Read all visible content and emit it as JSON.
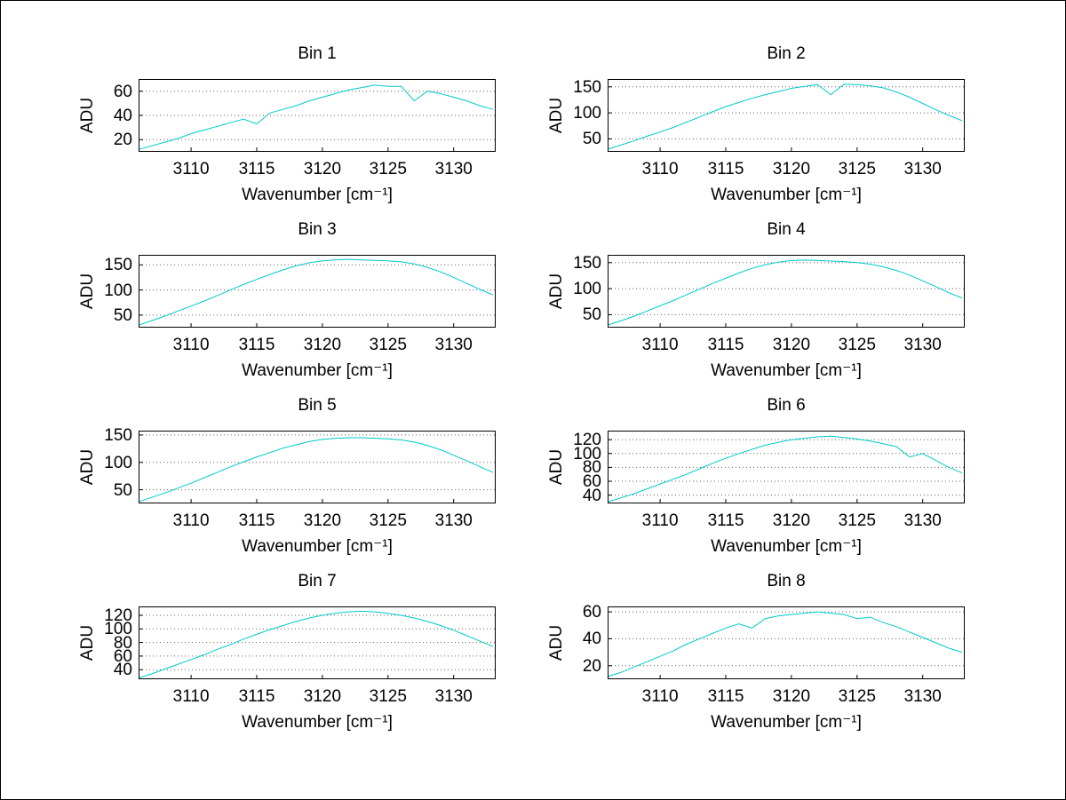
{
  "colors": {
    "line": "#00C9C9",
    "grid": "#606060",
    "axis": "#000000",
    "background": "#ffffff"
  },
  "chart_data": [
    {
      "type": "line",
      "title": "Bin 1",
      "ylabel": "ADU",
      "xlabel": "Wavenumber [cm⁻¹]",
      "xlim": [
        3106,
        3133.2
      ],
      "ylim": [
        10,
        70
      ],
      "xticks": [
        3110,
        3115,
        3120,
        3125,
        3130
      ],
      "yticks": [
        20,
        40,
        60
      ],
      "grid": "horizontal-dotted",
      "x": [
        3106,
        3107,
        3108,
        3109,
        3110,
        3111,
        3112,
        3113,
        3114,
        3115,
        3116,
        3117,
        3118,
        3119,
        3120,
        3121,
        3122,
        3123,
        3124,
        3125,
        3126,
        3127,
        3128,
        3129,
        3130,
        3131,
        3132,
        3133
      ],
      "y": [
        12,
        15,
        18,
        21,
        25,
        28,
        31,
        34,
        37,
        33,
        42,
        45,
        48,
        52,
        55,
        58,
        61,
        63,
        65,
        64,
        64,
        52,
        60,
        58,
        55,
        52,
        48,
        45
      ]
    },
    {
      "type": "line",
      "title": "Bin 2",
      "ylabel": "ADU",
      "xlabel": "Wavenumber [cm⁻¹]",
      "xlim": [
        3106,
        3133.2
      ],
      "ylim": [
        25,
        165
      ],
      "xticks": [
        3110,
        3115,
        3120,
        3125,
        3130
      ],
      "yticks": [
        50,
        100,
        150
      ],
      "grid": "horizontal-dotted",
      "x": [
        3106,
        3107,
        3108,
        3109,
        3110,
        3111,
        3112,
        3113,
        3114,
        3115,
        3116,
        3117,
        3118,
        3119,
        3120,
        3121,
        3122,
        3123,
        3124,
        3125,
        3126,
        3127,
        3128,
        3129,
        3130,
        3131,
        3132,
        3133
      ],
      "y": [
        30,
        38,
        46,
        55,
        63,
        72,
        82,
        92,
        102,
        112,
        120,
        128,
        135,
        141,
        147,
        151,
        154,
        135,
        155,
        154,
        152,
        148,
        140,
        130,
        118,
        106,
        95,
        85
      ]
    },
    {
      "type": "line",
      "title": "Bin 3",
      "ylabel": "ADU",
      "xlabel": "Wavenumber [cm⁻¹]",
      "xlim": [
        3106,
        3133.2
      ],
      "ylim": [
        25,
        170
      ],
      "xticks": [
        3110,
        3115,
        3120,
        3125,
        3130
      ],
      "yticks": [
        50,
        100,
        150
      ],
      "grid": "horizontal-dotted",
      "x": [
        3106,
        3107,
        3108,
        3109,
        3110,
        3111,
        3112,
        3113,
        3114,
        3115,
        3116,
        3117,
        3118,
        3119,
        3120,
        3121,
        3122,
        3123,
        3124,
        3125,
        3126,
        3127,
        3128,
        3129,
        3130,
        3131,
        3132,
        3133
      ],
      "y": [
        30,
        39,
        48,
        58,
        68,
        78,
        89,
        100,
        111,
        121,
        131,
        140,
        148,
        154,
        158,
        160,
        161,
        160,
        159,
        158,
        156,
        152,
        145,
        136,
        125,
        113,
        101,
        90
      ]
    },
    {
      "type": "line",
      "title": "Bin 4",
      "ylabel": "ADU",
      "xlabel": "Wavenumber [cm⁻¹]",
      "xlim": [
        3106,
        3133.2
      ],
      "ylim": [
        25,
        165
      ],
      "xticks": [
        3110,
        3115,
        3120,
        3125,
        3130
      ],
      "yticks": [
        50,
        100,
        150
      ],
      "grid": "horizontal-dotted",
      "x": [
        3106,
        3107,
        3108,
        3109,
        3110,
        3111,
        3112,
        3113,
        3114,
        3115,
        3116,
        3117,
        3118,
        3119,
        3120,
        3121,
        3122,
        3123,
        3124,
        3125,
        3126,
        3127,
        3128,
        3129,
        3130,
        3131,
        3132,
        3133
      ],
      "y": [
        30,
        38,
        47,
        57,
        67,
        77,
        88,
        99,
        110,
        120,
        130,
        139,
        146,
        151,
        154,
        155,
        154,
        153,
        152,
        150,
        147,
        142,
        135,
        126,
        115,
        104,
        92,
        82
      ]
    },
    {
      "type": "line",
      "title": "Bin 5",
      "ylabel": "ADU",
      "xlabel": "Wavenumber [cm⁻¹]",
      "xlim": [
        3106,
        3133.2
      ],
      "ylim": [
        25,
        158
      ],
      "xticks": [
        3110,
        3115,
        3120,
        3125,
        3130
      ],
      "yticks": [
        50,
        100,
        150
      ],
      "grid": "horizontal-dotted",
      "x": [
        3106,
        3107,
        3108,
        3109,
        3110,
        3111,
        3112,
        3113,
        3114,
        3115,
        3116,
        3117,
        3118,
        3119,
        3120,
        3121,
        3122,
        3123,
        3124,
        3125,
        3126,
        3127,
        3128,
        3129,
        3130,
        3131,
        3132,
        3133
      ],
      "y": [
        28,
        36,
        44,
        53,
        62,
        72,
        82,
        92,
        101,
        110,
        118,
        126,
        132,
        138,
        142,
        144,
        145,
        145,
        144,
        143,
        141,
        137,
        131,
        123,
        113,
        103,
        92,
        82
      ]
    },
    {
      "type": "line",
      "title": "Bin 6",
      "ylabel": "ADU",
      "xlabel": "Wavenumber [cm⁻¹]",
      "xlim": [
        3106,
        3133.2
      ],
      "ylim": [
        28,
        133
      ],
      "xticks": [
        3110,
        3115,
        3120,
        3125,
        3130
      ],
      "yticks": [
        40,
        60,
        80,
        100,
        120
      ],
      "grid": "horizontal-dotted",
      "x": [
        3106,
        3107,
        3108,
        3109,
        3110,
        3111,
        3112,
        3113,
        3114,
        3115,
        3116,
        3117,
        3118,
        3119,
        3120,
        3121,
        3122,
        3123,
        3124,
        3125,
        3126,
        3127,
        3128,
        3129,
        3130,
        3131,
        3132,
        3133
      ],
      "y": [
        30,
        36,
        42,
        49,
        56,
        63,
        70,
        78,
        86,
        93,
        100,
        106,
        112,
        116,
        120,
        122,
        124,
        125,
        123,
        121,
        118,
        114,
        110,
        95,
        100,
        90,
        80,
        72
      ]
    },
    {
      "type": "line",
      "title": "Bin 7",
      "ylabel": "ADU",
      "xlabel": "Wavenumber [cm⁻¹]",
      "xlim": [
        3106,
        3133.2
      ],
      "ylim": [
        26,
        133
      ],
      "xticks": [
        3110,
        3115,
        3120,
        3125,
        3130
      ],
      "yticks": [
        40,
        60,
        80,
        100,
        120
      ],
      "grid": "horizontal-dotted",
      "x": [
        3106,
        3107,
        3108,
        3109,
        3110,
        3111,
        3112,
        3113,
        3114,
        3115,
        3116,
        3117,
        3118,
        3119,
        3120,
        3121,
        3122,
        3123,
        3124,
        3125,
        3126,
        3127,
        3128,
        3129,
        3130,
        3131,
        3132,
        3133
      ],
      "y": [
        28,
        34,
        41,
        48,
        55,
        62,
        70,
        77,
        85,
        92,
        99,
        105,
        111,
        116,
        120,
        123,
        125,
        126,
        125,
        123,
        120,
        116,
        111,
        105,
        98,
        90,
        82,
        74
      ]
    },
    {
      "type": "line",
      "title": "Bin 8",
      "ylabel": "ADU",
      "xlabel": "Wavenumber [cm⁻¹]",
      "xlim": [
        3106,
        3133.2
      ],
      "ylim": [
        10,
        64
      ],
      "xticks": [
        3110,
        3115,
        3120,
        3125,
        3130
      ],
      "yticks": [
        20,
        40,
        60
      ],
      "grid": "horizontal-dotted",
      "x": [
        3106,
        3107,
        3108,
        3109,
        3110,
        3111,
        3112,
        3113,
        3114,
        3115,
        3116,
        3117,
        3118,
        3119,
        3120,
        3121,
        3122,
        3123,
        3124,
        3125,
        3126,
        3127,
        3128,
        3129,
        3130,
        3131,
        3132,
        3133
      ],
      "y": [
        12,
        15,
        19,
        23,
        27,
        31,
        36,
        40,
        44,
        48,
        51,
        48,
        55,
        57,
        58,
        59,
        60,
        59,
        58,
        55,
        56,
        52,
        49,
        45,
        41,
        37,
        33,
        30
      ]
    }
  ]
}
